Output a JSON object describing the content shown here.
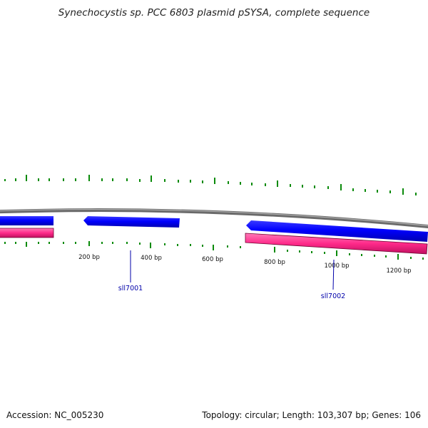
{
  "title": "Synechocystis sp. PCC 6803 plasmid pSYSA, complete sequence",
  "accession": "Accession: NC_005230",
  "summary": "Topology: circular; Length: 103,307 bp; Genes: 106",
  "position_labels": [
    "200 bp",
    "400 bp",
    "600 bp",
    "800 bp",
    "1000 bp",
    "1200 bp"
  ],
  "genes": [
    {
      "name": "sll7001",
      "strand": "reverse"
    },
    {
      "name": "sll7002",
      "strand": "reverse"
    }
  ],
  "colors": {
    "backbone": "#7a7a7a",
    "gene_arrow": "#0000ff",
    "cds_band": "#ff2a8a",
    "skew_marks": "#0a8a0a",
    "gene_label": "#0000aa"
  }
}
